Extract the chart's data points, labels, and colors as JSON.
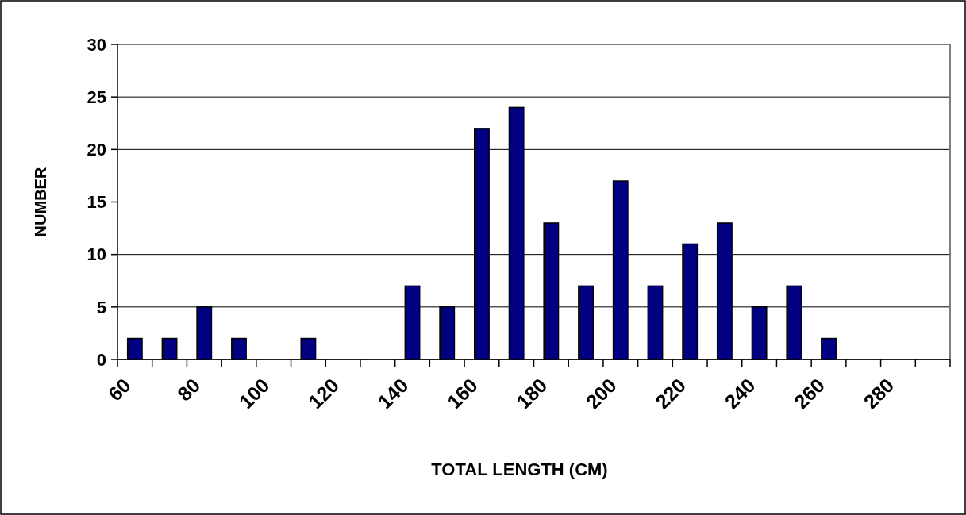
{
  "chart_data": {
    "type": "histogram",
    "xlabel": "TOTAL LENGTH (CM)",
    "ylabel": "NUMBER",
    "bins": [
      60,
      70,
      80,
      90,
      100,
      110,
      120,
      130,
      140,
      150,
      160,
      170,
      180,
      190,
      200,
      210,
      220,
      230,
      240,
      250,
      260,
      270,
      280,
      290,
      300
    ],
    "values": [
      2,
      2,
      5,
      2,
      0,
      2,
      0,
      0,
      7,
      5,
      22,
      24,
      13,
      7,
      17,
      7,
      11,
      13,
      5,
      7,
      2,
      0,
      0,
      0
    ],
    "color": "#000080",
    "xlim": [
      60,
      300
    ],
    "xticks": [
      60,
      {
        "value": 70,
        "label": null
      },
      80,
      {
        "value": 90,
        "label": null
      },
      100,
      {
        "value": 110,
        "label": null
      },
      120,
      {
        "value": 130,
        "label": null
      },
      140,
      {
        "value": 150,
        "label": null
      },
      160,
      {
        "value": 170,
        "label": null
      },
      180,
      {
        "value": 190,
        "label": null
      },
      200,
      {
        "value": 210,
        "label": null
      },
      220,
      {
        "value": 230,
        "label": null
      },
      240,
      {
        "value": 250,
        "label": null
      },
      260,
      {
        "value": 270,
        "label": null
      },
      280,
      {
        "value": 290,
        "label": null
      },
      {
        "value": 300,
        "label": null
      }
    ],
    "ylim": [
      0,
      30
    ],
    "yticks": [
      0,
      5,
      10,
      15,
      20,
      25,
      30
    ],
    "grid": "y"
  }
}
